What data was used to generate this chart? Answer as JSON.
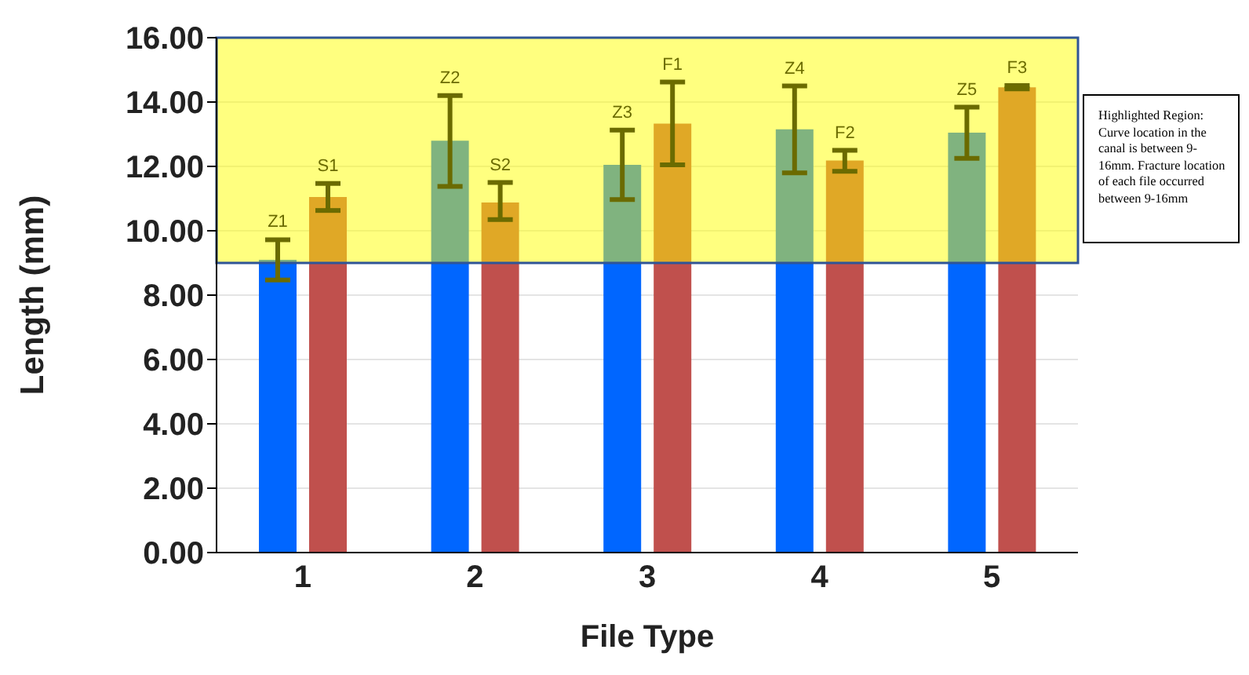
{
  "chart_data": {
    "type": "bar",
    "xlabel": "File Type",
    "ylabel": "Length (mm)",
    "categories": [
      "1",
      "2",
      "3",
      "4",
      "5"
    ],
    "series": [
      {
        "color": "#0066ff",
        "values": [
          9.1,
          12.8,
          12.05,
          13.15,
          13.05
        ],
        "errors": [
          [
            8.47,
            9.72
          ],
          [
            11.38,
            14.2
          ],
          [
            10.97,
            13.13
          ],
          [
            11.8,
            14.5
          ],
          [
            12.25,
            13.84
          ]
        ],
        "value_labels": [
          "Z1",
          "Z2",
          "Z3",
          "Z4",
          "Z5"
        ]
      },
      {
        "color": "#c0504d",
        "values": [
          11.05,
          10.88,
          13.33,
          12.18,
          14.46
        ],
        "errors": [
          [
            10.63,
            11.47
          ],
          [
            10.35,
            11.5
          ],
          [
            12.05,
            14.62
          ],
          [
            11.85,
            12.5
          ],
          [
            14.41,
            14.51
          ]
        ],
        "value_labels": [
          "S1",
          "S2",
          "F1",
          "F2",
          "F3"
        ]
      }
    ],
    "ylim": [
      0,
      16
    ],
    "yticks": [
      {
        "value": 0,
        "label": "0.00"
      },
      {
        "value": 2,
        "label": "2.00"
      },
      {
        "value": 4,
        "label": "4.00"
      },
      {
        "value": 6,
        "label": "6.00"
      },
      {
        "value": 8,
        "label": "8.00"
      },
      {
        "value": 10,
        "label": "10.00"
      },
      {
        "value": 12,
        "label": "12.00"
      },
      {
        "value": 14,
        "label": "14.00"
      },
      {
        "value": 16,
        "label": "16.00"
      }
    ],
    "bands": [
      {
        "axis": "y",
        "from": 9,
        "to": 16,
        "color": "#ffff00",
        "label": "Highlighted Region: Curve location in the canal is between 9-16mm. Fracture location of each file occurred between 9-16mm"
      }
    ],
    "grid": "y",
    "legend": false
  }
}
